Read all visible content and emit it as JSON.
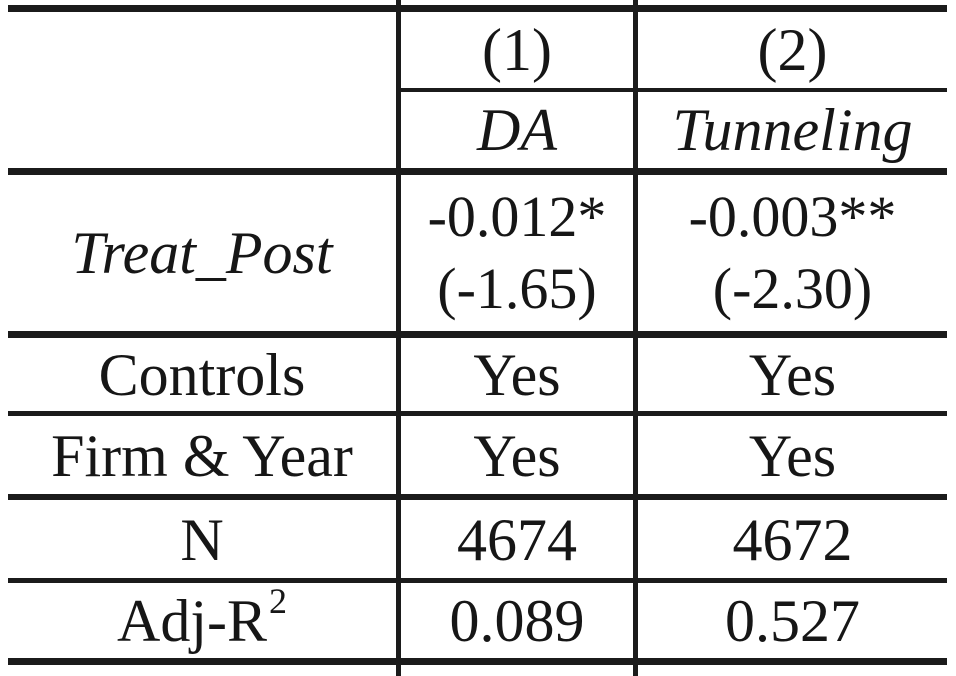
{
  "figure": {
    "type": "regression-results-table"
  },
  "colors": {
    "background": "#ffffff",
    "text": "#161616",
    "rule": "#1b1b1b"
  },
  "header": {
    "model1_number": "(1)",
    "model2_number": "(2)",
    "model1_depvar": "DA",
    "model2_depvar": "Tunneling"
  },
  "rows": {
    "treat_post": {
      "label": "Treat_Post",
      "model1_coef": "-0.012*",
      "model1_tstat": "(-1.65)",
      "model2_coef": "-0.003**",
      "model2_tstat": "(-2.30)"
    },
    "controls": {
      "label": "Controls",
      "model1": "Yes",
      "model2": "Yes"
    },
    "firm_year_fe": {
      "label": "Firm & Year",
      "model1": "Yes",
      "model2": "Yes"
    },
    "n_obs": {
      "label": "N",
      "model1": "4674",
      "model2": "4672"
    },
    "adj_r2": {
      "label_base": "Adj-R",
      "label_sup": "2",
      "model1": "0.089",
      "model2": "0.527"
    }
  },
  "chart_data": {
    "type": "table",
    "columns": [
      "",
      "(1) DA",
      "(2) Tunneling"
    ],
    "rows": [
      [
        "Treat_Post",
        "-0.012* (-1.65)",
        "-0.003** (-2.30)"
      ],
      [
        "Controls",
        "Yes",
        "Yes"
      ],
      [
        "Firm & Year",
        "Yes",
        "Yes"
      ],
      [
        "N",
        "4674",
        "4672"
      ],
      [
        "Adj-R2",
        "0.089",
        "0.527"
      ]
    ]
  }
}
